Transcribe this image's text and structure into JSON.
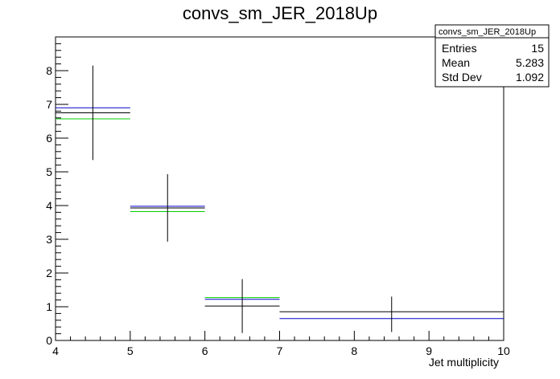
{
  "chart_data": {
    "type": "histogram",
    "title": "convs_sm_JER_2018Up",
    "xlabel": "Jet multiplicity",
    "ylabel": "",
    "xlim": [
      4,
      10
    ],
    "ylim": [
      0,
      9
    ],
    "x_ticks": [
      4,
      5,
      6,
      7,
      8,
      9,
      10
    ],
    "y_ticks": [
      0,
      1,
      2,
      3,
      4,
      5,
      6,
      7,
      8
    ],
    "bins": [
      [
        4,
        5
      ],
      [
        5,
        6
      ],
      [
        6,
        7
      ],
      [
        7,
        10
      ]
    ],
    "series": [
      {
        "color": "#000000",
        "values": [
          6.75,
          3.93,
          1.02,
          0.85
        ],
        "errors_low": [
          1.4,
          1.0,
          0.8,
          0.6
        ],
        "errors_high": [
          1.4,
          1.0,
          0.8,
          0.45
        ]
      },
      {
        "color": "#0000cc",
        "values": [
          6.9,
          3.98,
          1.22,
          0.65
        ]
      },
      {
        "color": "#00cc00",
        "values": [
          6.57,
          3.82,
          1.27,
          null
        ]
      }
    ],
    "stats": {
      "title": "convs_sm_JER_2018Up",
      "rows": [
        {
          "label": "Entries",
          "value": "15"
        },
        {
          "label": "Mean",
          "value": "5.283"
        },
        {
          "label": "Std Dev",
          "value": "1.092"
        }
      ]
    }
  }
}
